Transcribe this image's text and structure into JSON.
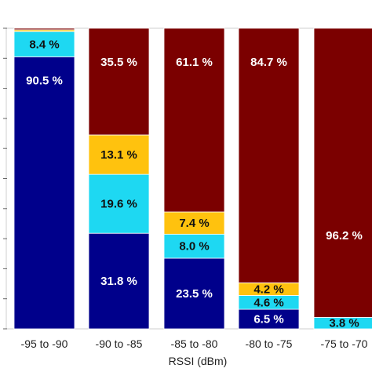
{
  "chart_data": {
    "type": "bar",
    "stacked": true,
    "xlabel": "RSSI (dBm)",
    "ylabel": "",
    "ylim": [
      0,
      100
    ],
    "categories": [
      "-95 to -90",
      "-90 to -85",
      "-85 to -80",
      "-80 to -75",
      "-75 to -70"
    ],
    "series": [
      {
        "color": "#00008b",
        "values": [
          90.5,
          31.8,
          23.5,
          6.5,
          0.0
        ]
      },
      {
        "color": "#1ed8f2",
        "values": [
          8.4,
          19.6,
          8.0,
          4.6,
          3.8
        ]
      },
      {
        "color": "#ffc20e",
        "values": [
          0.6,
          13.1,
          7.4,
          4.2,
          0.0
        ]
      },
      {
        "color": "#7b0000",
        "values": [
          0.5,
          35.5,
          61.1,
          84.7,
          96.2
        ]
      }
    ],
    "data_labels": [
      [
        "90.5 %",
        "8.4 %",
        "",
        ""
      ],
      [
        "31.8 %",
        "19.6 %",
        "13.1 %",
        "35.5 %"
      ],
      [
        "23.5 %",
        "8.0 %",
        "7.4 %",
        "61.1 %"
      ],
      [
        "6.5 %",
        "4.6 %",
        "4.2 %",
        "84.7 %"
      ],
      [
        "",
        "3.8 %",
        "",
        "96.2 %"
      ]
    ],
    "grid": false,
    "legend": "none"
  }
}
